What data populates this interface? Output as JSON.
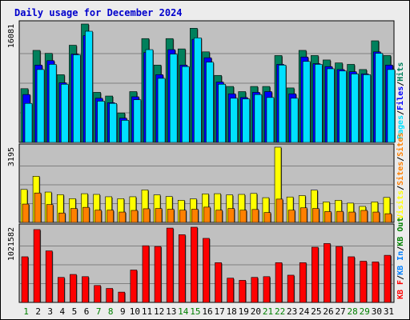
{
  "title": "Daily usage for December 2024",
  "colors": {
    "background": "#ececec",
    "border": "#000000",
    "panel": "#c0c0c0",
    "gridline": "#808080",
    "title": "#0000cc",
    "axis_label": "#000000",
    "hits": "#00805c",
    "files": "#0000ff",
    "pages": "#00e0ff",
    "visits": "#ffff00",
    "sites": "#ff8000",
    "kbin": "#ff0000",
    "kbout_label": "#008000",
    "kbin_label": "#0080ff",
    "weekend": "#008000",
    "weekday": "#000000"
  },
  "chart_data": [
    {
      "type": "bar",
      "name": "hits-files-pages",
      "legend": [
        "Pages",
        "/",
        "Files",
        "/",
        "Hits"
      ],
      "ymax_label": "16081",
      "ylim": [
        0,
        16081
      ],
      "categories": [
        "1",
        "2",
        "3",
        "4",
        "5",
        "6",
        "7",
        "8",
        "9",
        "10",
        "11",
        "12",
        "13",
        "14",
        "15",
        "16",
        "17",
        "18",
        "19",
        "20",
        "21",
        "22",
        "23",
        "24",
        "25",
        "26",
        "27",
        "28",
        "29",
        "30",
        "31"
      ],
      "series": [
        {
          "name": "Hits",
          "values": [
            7300,
            12500,
            12100,
            9200,
            13200,
            16081,
            6800,
            6300,
            4000,
            6900,
            14100,
            10500,
            14100,
            12700,
            15500,
            12300,
            9100,
            7600,
            6900,
            7600,
            7600,
            11800,
            7400,
            12500,
            11800,
            11200,
            10800,
            10600,
            9900,
            13800,
            11800
          ]
        },
        {
          "name": "Files",
          "values": [
            6500,
            10500,
            11100,
            8100,
            12000,
            14500,
            6000,
            5400,
            3300,
            6200,
            12200,
            9200,
            12600,
            10500,
            14000,
            11500,
            8200,
            6600,
            6100,
            6800,
            6900,
            10600,
            6600,
            11600,
            10700,
            10300,
            9900,
            9600,
            9300,
            12300,
            10500
          ]
        },
        {
          "name": "Pages",
          "values": [
            5300,
            9900,
            10600,
            7900,
            11900,
            15100,
            5600,
            5300,
            3000,
            5800,
            12600,
            8700,
            12000,
            10300,
            14200,
            10900,
            7900,
            6000,
            5900,
            6500,
            6100,
            10500,
            6000,
            11000,
            10600,
            10000,
            9700,
            9300,
            9200,
            12100,
            9900
          ]
        }
      ]
    },
    {
      "type": "bar",
      "name": "visits-sites",
      "legend": [
        "Visits",
        "/",
        "Sites",
        "/",
        "Sites"
      ],
      "ymax_label": "3195",
      "ylim": [
        0,
        3195
      ],
      "categories": [
        "1",
        "2",
        "3",
        "4",
        "5",
        "6",
        "7",
        "8",
        "9",
        "10",
        "11",
        "12",
        "13",
        "14",
        "15",
        "16",
        "17",
        "18",
        "19",
        "20",
        "21",
        "22",
        "23",
        "24",
        "25",
        "26",
        "27",
        "28",
        "29",
        "30",
        "31"
      ],
      "series": [
        {
          "name": "Visits",
          "values": [
            1400,
            1960,
            1290,
            1180,
            1010,
            1220,
            1190,
            1090,
            1010,
            1090,
            1380,
            1170,
            1100,
            940,
            1000,
            1210,
            1220,
            1170,
            1190,
            1230,
            1050,
            3195,
            1080,
            1140,
            1370,
            870,
            940,
            820,
            680,
            870,
            1060
          ]
        },
        {
          "name": "Sites",
          "values": [
            780,
            1250,
            760,
            400,
            590,
            640,
            520,
            520,
            440,
            510,
            580,
            590,
            560,
            520,
            560,
            650,
            520,
            590,
            520,
            550,
            420,
            990,
            520,
            620,
            590,
            460,
            470,
            440,
            510,
            440,
            370
          ]
        }
      ]
    },
    {
      "type": "bar",
      "name": "kbytes",
      "legend": [
        "KB F",
        "/",
        "KB In",
        "/",
        "KB Out"
      ],
      "ymax_label": "1021582",
      "ylim": [
        0,
        1021582
      ],
      "categories": [
        "1",
        "2",
        "3",
        "4",
        "5",
        "6",
        "7",
        "8",
        "9",
        "10",
        "11",
        "12",
        "13",
        "14",
        "15",
        "16",
        "17",
        "18",
        "19",
        "20",
        "21",
        "22",
        "23",
        "24",
        "25",
        "26",
        "27",
        "28",
        "29",
        "30",
        "31"
      ],
      "series": [
        {
          "name": "KB F",
          "values": [
            620000,
            990000,
            700000,
            340000,
            380000,
            350000,
            230000,
            190000,
            140000,
            440000,
            770000,
            760000,
            1010000,
            920000,
            1021582,
            870000,
            540000,
            330000,
            300000,
            340000,
            350000,
            540000,
            370000,
            540000,
            750000,
            800000,
            760000,
            620000,
            560000,
            550000,
            640000
          ]
        }
      ]
    }
  ],
  "x_labels": [
    "1",
    "2",
    "3",
    "4",
    "5",
    "6",
    "7",
    "8",
    "9",
    "10",
    "11",
    "12",
    "13",
    "14",
    "15",
    "16",
    "17",
    "18",
    "19",
    "20",
    "21",
    "22",
    "23",
    "24",
    "25",
    "26",
    "27",
    "28",
    "29",
    "30",
    "31"
  ],
  "weekend_days": [
    1,
    7,
    8,
    14,
    15,
    21,
    22,
    28,
    29
  ]
}
